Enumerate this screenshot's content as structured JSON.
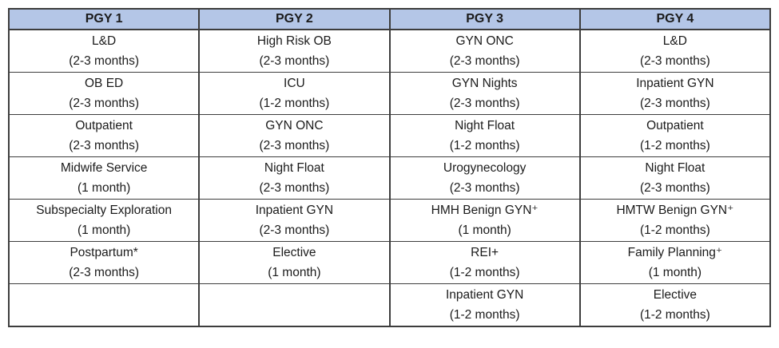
{
  "table": {
    "title_semantic": "OBGYN residency rotation schedule by post-graduate year",
    "colors": {
      "header_bg": "#b4c6e7",
      "border": "#3d3d3d",
      "text": "#1b1b1b",
      "page_bg": "#ffffff"
    },
    "headers": [
      "PGY 1",
      "PGY 2",
      "PGY 3",
      "PGY 4"
    ],
    "rows": [
      [
        {
          "name": "L&D",
          "duration": "(2-3 months)"
        },
        {
          "name": "High Risk OB",
          "duration": "(2-3 months)"
        },
        {
          "name": "GYN ONC",
          "duration": "(2-3 months)"
        },
        {
          "name": "L&D",
          "duration": "(2-3 months)"
        }
      ],
      [
        {
          "name": "OB ED",
          "duration": "(2-3 months)"
        },
        {
          "name": "ICU",
          "duration": "(1-2 months)"
        },
        {
          "name": "GYN Nights",
          "duration": "(2-3 months)"
        },
        {
          "name": "Inpatient GYN",
          "duration": "(2-3 months)"
        }
      ],
      [
        {
          "name": "Outpatient",
          "duration": "(2-3 months)"
        },
        {
          "name": "GYN ONC",
          "duration": "(2-3 months)"
        },
        {
          "name": "Night Float",
          "duration": "(1-2 months)"
        },
        {
          "name": "Outpatient",
          "duration": "(1-2 months)"
        }
      ],
      [
        {
          "name": "Midwife Service",
          "duration": "(1 month)"
        },
        {
          "name": "Night Float",
          "duration": "(2-3 months)"
        },
        {
          "name": "Urogynecology",
          "duration": "(2-3 months)"
        },
        {
          "name": "Night Float",
          "duration": "(2-3 months)"
        }
      ],
      [
        {
          "name": "Subspecialty Exploration",
          "duration": "(1 month)"
        },
        {
          "name": "Inpatient GYN",
          "duration": "(2-3 months)"
        },
        {
          "name": "HMH Benign GYN⁺",
          "duration": "(1 month)"
        },
        {
          "name": "HMTW Benign GYN⁺",
          "duration": "(1-2 months)"
        }
      ],
      [
        {
          "name": "Postpartum*",
          "duration": "(2-3 months)"
        },
        {
          "name": "Elective",
          "duration": "(1 month)"
        },
        {
          "name": "REI+",
          "duration": "(1-2 months)"
        },
        {
          "name": "Family Planning⁺",
          "duration": "(1 month)"
        }
      ],
      [
        {
          "name": "",
          "duration": ""
        },
        {
          "name": "",
          "duration": ""
        },
        {
          "name": "Inpatient GYN",
          "duration": "(1-2 months)"
        },
        {
          "name": "Elective",
          "duration": "(1-2 months)"
        }
      ]
    ]
  }
}
